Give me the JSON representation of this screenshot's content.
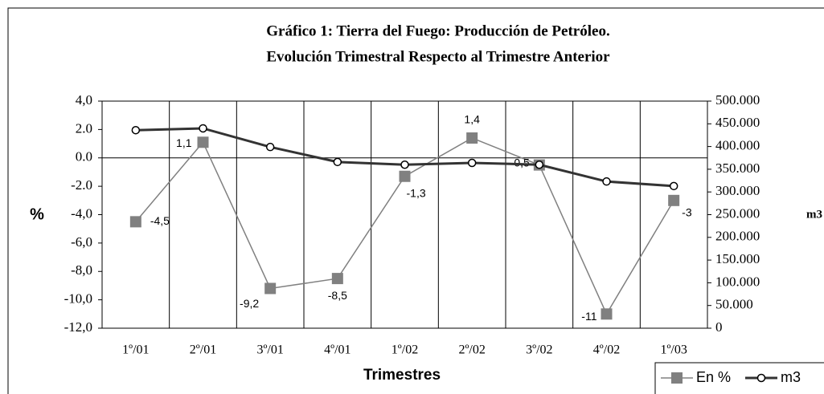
{
  "chart_data": {
    "type": "line",
    "title": "Gráfico 1: Tierra del Fuego: Producción de Petróleo.",
    "subtitle": "Evolución Trimestral Respecto al Trimestre Anterior",
    "x_label": "Trimestres",
    "y_label": "%",
    "y2_label": "m3",
    "categories": [
      "1º/01",
      "2º/01",
      "3º/01",
      "4º/01",
      "1º/02",
      "2º/02",
      "3º/02",
      "4º/02",
      "1º/03"
    ],
    "series": [
      {
        "name": "En %",
        "color": "#808080",
        "values": [
          -4.5,
          1.1,
          -9.2,
          -8.5,
          -1.3,
          1.4,
          -0.5,
          -11,
          -3
        ],
        "value_labels": [
          "-4,5",
          "1,1",
          "-9,2",
          "-8,5",
          "-1,3",
          "1,4",
          "-0,5",
          "-11",
          "-3"
        ]
      },
      {
        "name": "m3",
        "color": "#333333",
        "axis": "y2",
        "values": [
          436000,
          440000,
          399000,
          366000,
          360000,
          364000,
          360000,
          323000,
          313000
        ]
      }
    ],
    "ylim": [
      -12,
      4
    ],
    "yticks": [
      {
        "value": 4,
        "label": "4,0"
      },
      {
        "value": 2,
        "label": "2.0"
      },
      {
        "value": 0,
        "label": "0.0"
      },
      {
        "value": -2,
        "label": "-2.0"
      },
      {
        "value": -4,
        "label": "-4,0"
      },
      {
        "value": -6,
        "label": "-6,0"
      },
      {
        "value": -8,
        "label": "-8,0"
      },
      {
        "value": -10,
        "label": "-10,0"
      },
      {
        "value": -12,
        "label": "-12,0"
      }
    ],
    "y2lim": [
      0,
      500000
    ],
    "y2ticks": [
      {
        "value": 500000,
        "label": "500.000"
      },
      {
        "value": 450000,
        "label": "450.000"
      },
      {
        "value": 400000,
        "label": "400.000"
      },
      {
        "value": 350000,
        "label": "350.000"
      },
      {
        "value": 300000,
        "label": "300.000"
      },
      {
        "value": 250000,
        "label": "250.000"
      },
      {
        "value": 200000,
        "label": "200.000"
      },
      {
        "value": 150000,
        "label": "150.000"
      },
      {
        "value": 100000,
        "label": "100.000"
      },
      {
        "value": 50000,
        "label": "50.000"
      },
      0
    ]
  }
}
